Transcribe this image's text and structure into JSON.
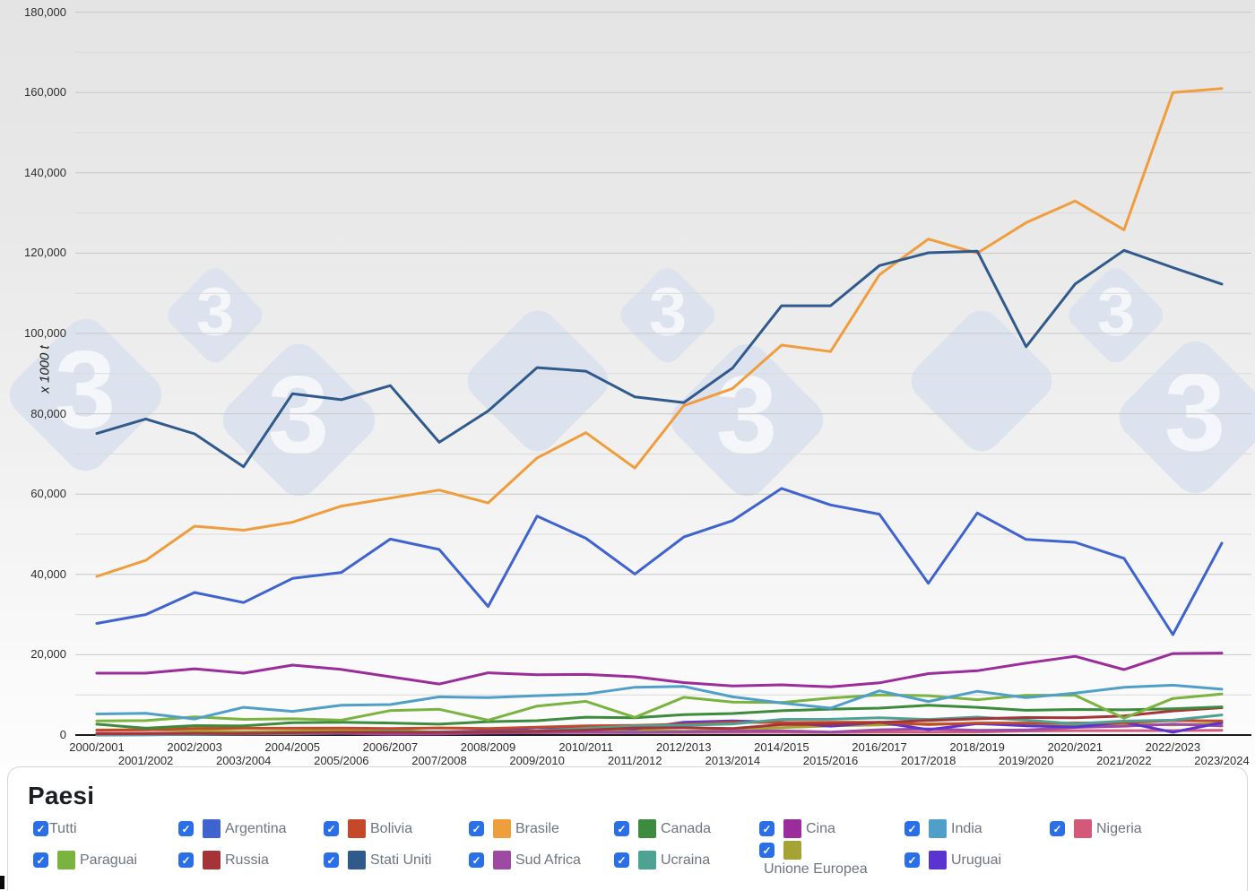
{
  "axis": {
    "ylabel": "x 1000 t"
  },
  "legend": {
    "title": "Paesi",
    "checkbox_color": "#2b6fe8",
    "items": [
      {
        "label": "Tutti",
        "series": null,
        "checked": true
      },
      {
        "label": "Argentina",
        "series": "argentina",
        "checked": true
      },
      {
        "label": "Bolivia",
        "series": "bolivia",
        "checked": true
      },
      {
        "label": "Brasile",
        "series": "brasile",
        "checked": true
      },
      {
        "label": "Canada",
        "series": "canada",
        "checked": true
      },
      {
        "label": "Cina",
        "series": "cina",
        "checked": true
      },
      {
        "label": "India",
        "series": "india",
        "checked": true
      },
      {
        "label": "Nigeria",
        "series": "nigeria",
        "checked": true
      },
      {
        "label": "Paraguai",
        "series": "paraguai",
        "checked": true
      },
      {
        "label": "Russia",
        "series": "russia",
        "checked": true
      },
      {
        "label": "Stati Uniti",
        "series": "stati_uniti",
        "checked": true
      },
      {
        "label": "Sud Africa",
        "series": "sud_africa",
        "checked": true
      },
      {
        "label": "Ucraina",
        "series": "ucraina",
        "checked": true
      },
      {
        "label": "Unione Europea",
        "series": "unione_europea",
        "checked": true
      },
      {
        "label": "Uruguai",
        "series": "uruguai",
        "checked": true
      }
    ]
  },
  "watermark": {
    "glyph": "3",
    "diamond_color": "#dde3ee",
    "glyph_color": "#f4f6fa"
  },
  "chart_data": {
    "type": "line",
    "title": "",
    "xlabel": "",
    "ylabel": "x 1000 t",
    "ylim": [
      0,
      180000
    ],
    "y_major_step": 20000,
    "y_minor_step": 10000,
    "grid": "horizontal",
    "legend_position": "bottom",
    "categories": [
      "2000/2001",
      "2001/2002",
      "2002/2003",
      "2003/2004",
      "2004/2005",
      "2005/2006",
      "2006/2007",
      "2007/2008",
      "2008/2009",
      "2009/2010",
      "2010/2011",
      "2011/2012",
      "2012/2013",
      "2013/2014",
      "2014/2015",
      "2015/2016",
      "2016/2017",
      "2017/2018",
      "2018/2019",
      "2019/2020",
      "2020/2021",
      "2021/2022",
      "2022/2023",
      "2023/2024"
    ],
    "series": [
      {
        "key": "nigeria",
        "name": "Nigeria",
        "color": "#d4587a",
        "values": [
          440,
          450,
          480,
          500,
          520,
          550,
          570,
          600,
          590,
          600,
          610,
          630,
          650,
          680,
          700,
          650,
          730,
          730,
          760,
          1000,
          1100,
          1100,
          1120,
          1150
        ]
      },
      {
        "key": "unione_europea",
        "name": "Unione Europea",
        "color": "#a6a335",
        "values": [
          1250,
          1350,
          1100,
          850,
          1000,
          1250,
          1230,
          700,
          730,
          870,
          1050,
          1200,
          950,
          1220,
          1850,
          2300,
          2500,
          2800,
          2800,
          2650,
          2600,
          2700,
          2500,
          2900
        ]
      },
      {
        "key": "sud_africa",
        "name": "Sud Africa",
        "color": "#9d4aa5",
        "values": [
          230,
          220,
          140,
          220,
          270,
          420,
          210,
          280,
          520,
          570,
          710,
          650,
          780,
          950,
          1070,
          740,
          1320,
          1540,
          1170,
          1250,
          1900,
          2200,
          2700,
          2300
        ]
      },
      {
        "key": "uruguai",
        "name": "Uruguai",
        "color": "#5b33d1",
        "values": [
          30,
          70,
          180,
          380,
          480,
          630,
          780,
          780,
          1030,
          1820,
          1860,
          1500,
          3200,
          3500,
          3200,
          2210,
          3200,
          1330,
          2830,
          2300,
          2000,
          3200,
          700,
          3100
        ]
      },
      {
        "key": "bolivia",
        "name": "Bolivia",
        "color": "#c4492b",
        "values": [
          1200,
          1280,
          1650,
          1700,
          1690,
          1720,
          1600,
          1770,
          1630,
          1950,
          2300,
          2400,
          2680,
          3200,
          3100,
          3200,
          3200,
          2600,
          2980,
          3000,
          3000,
          3100,
          3600,
          3500
        ]
      },
      {
        "key": "ucraina",
        "name": "Ucraina",
        "color": "#4ea294",
        "values": [
          100,
          120,
          180,
          280,
          400,
          610,
          890,
          720,
          810,
          1040,
          1680,
          2260,
          2410,
          2770,
          3880,
          3930,
          4280,
          3890,
          4460,
          3700,
          2800,
          3490,
          3700,
          5000
        ]
      },
      {
        "key": "russia",
        "name": "Russia",
        "color": "#a53438",
        "values": [
          330,
          350,
          420,
          390,
          550,
          690,
          680,
          650,
          750,
          940,
          1220,
          1760,
          1810,
          1640,
          2600,
          2710,
          3140,
          3620,
          4030,
          4360,
          4310,
          4760,
          6000,
          6800
        ]
      },
      {
        "key": "canada",
        "name": "Canada",
        "color": "#3d8b3d",
        "values": [
          2700,
          1700,
          2340,
          2270,
          3050,
          3160,
          3000,
          2700,
          3330,
          3580,
          4450,
          4300,
          5090,
          5360,
          6050,
          6460,
          6700,
          7400,
          6900,
          6150,
          6360,
          6270,
          6540,
          7000
        ]
      },
      {
        "key": "paraguai",
        "name": "Paraguai",
        "color": "#7ab33f",
        "values": [
          3500,
          3600,
          4500,
          3900,
          4040,
          3700,
          6100,
          6400,
          3700,
          7200,
          8400,
          4400,
          9400,
          8200,
          8100,
          9200,
          10000,
          9800,
          8800,
          9900,
          9900,
          4200,
          9100,
          10200
        ]
      },
      {
        "key": "india",
        "name": "India",
        "color": "#4f9fc8",
        "values": [
          5250,
          5400,
          4000,
          6900,
          5900,
          7400,
          7600,
          9500,
          9300,
          9800,
          10200,
          11900,
          12100,
          9500,
          8000,
          6700,
          11000,
          8350,
          10900,
          9300,
          10450,
          11900,
          12400,
          11400
        ]
      },
      {
        "key": "cina",
        "name": "Cina",
        "color": "#9c2b9c",
        "values": [
          15400,
          15400,
          16500,
          15400,
          17400,
          16350,
          14500,
          12700,
          15500,
          15000,
          15100,
          14500,
          13050,
          12200,
          12500,
          12000,
          13000,
          15300,
          16000,
          17900,
          19600,
          16300,
          20300,
          20400
        ]
      },
      {
        "key": "argentina",
        "name": "Argentina",
        "color": "#3f63cf",
        "values": [
          27800,
          30000,
          35500,
          33000,
          39000,
          40500,
          48800,
          46200,
          32000,
          54500,
          49000,
          40100,
          49300,
          53400,
          61400,
          57300,
          55000,
          37800,
          55300,
          48700,
          48000,
          44000,
          25000,
          47800
        ]
      },
      {
        "key": "brasile",
        "name": "Brasile",
        "color": "#f09d3e",
        "values": [
          39500,
          43500,
          52000,
          51000,
          53000,
          57000,
          59000,
          61000,
          57800,
          69000,
          75300,
          66500,
          82000,
          86300,
          97100,
          95500,
          114600,
          123500,
          120000,
          127600,
          133000,
          125800,
          160000,
          161000
        ]
      },
      {
        "key": "stati_uniti",
        "name": "Stati Uniti",
        "color": "#315a8c",
        "values": [
          75100,
          78700,
          75000,
          66800,
          85000,
          83500,
          87000,
          72900,
          80700,
          91500,
          90600,
          84200,
          82800,
          91400,
          106900,
          106900,
          116900,
          120100,
          120500,
          96700,
          112300,
          120700,
          116400,
          112300
        ]
      }
    ]
  }
}
